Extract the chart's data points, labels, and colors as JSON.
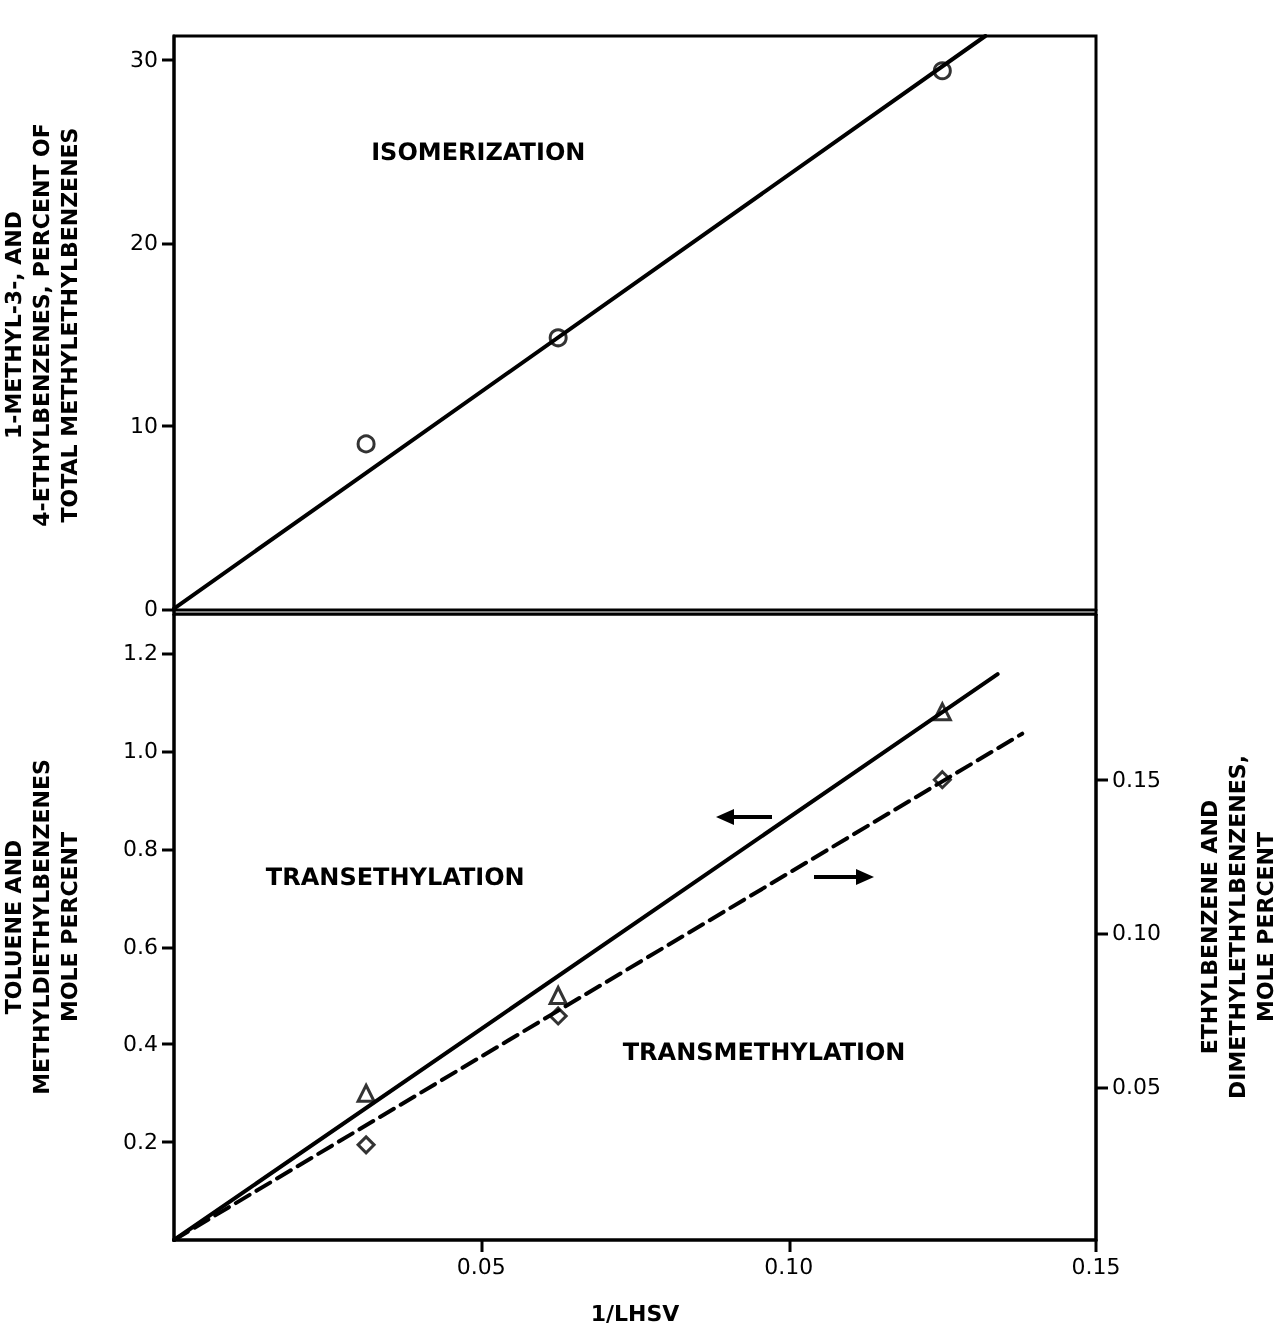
{
  "chart_data": [
    {
      "type": "scatter",
      "ylabel": "1-METHYL-3-, AND\n4-ETHYLBENZENES, PERCENT OF\nTOTAL METHYLETHYLBENZENES",
      "xlim": [
        0,
        0.15
      ],
      "ylim": [
        -0.3,
        31.3
      ],
      "yticks": [
        0,
        10,
        20,
        30
      ],
      "tick_labels": "y",
      "annotations": [
        "ISOMERIZATION"
      ],
      "series": [
        {
          "type": "scatter",
          "marker": "circle",
          "color": "#000000",
          "x": [
            0.03125,
            0.0625,
            0.125
          ],
          "values": [
            9.0,
            14.8,
            29.4
          ]
        },
        {
          "type": "line",
          "marker": "none",
          "line_style": "solid",
          "color": "#000000",
          "x": [
            0,
            0.132
          ],
          "values": [
            0,
            31.3
          ]
        }
      ]
    },
    {
      "type": "scatter",
      "xlabel": "1/LHSV",
      "ylabel": "TOLUENE AND\nMETHYLDIETHYLBENZENES\nMOLE PERCENT",
      "y2label": "ETHYLBENZENE AND\nDIMETHYLETHYLBENZENES,\nMOLE PERCENT",
      "xlim": [
        0,
        0.15
      ],
      "xticks": [
        0.05,
        {
          "value": 0.1,
          "label": "0.10"
        },
        0.15
      ],
      "ylim": [
        0,
        1.28
      ],
      "yticks": [
        0.2,
        0.4,
        0.6,
        0.8,
        {
          "value": 1,
          "label": "1.0"
        },
        1.2
      ],
      "y2lim": [
        0,
        0.204
      ],
      "y2ticks": [
        0.05,
        {
          "value": 0.1,
          "label": "0.10"
        },
        0.15
      ],
      "annotations": [
        "TRANSETHYLATION",
        "TRANSMETHYLATION"
      ],
      "series": [
        {
          "type": "scatter",
          "marker": "triangle",
          "color": "#000000",
          "x": [
            0.03125,
            0.0625,
            0.125
          ],
          "values": [
            0.3,
            0.5,
            1.08
          ]
        },
        {
          "type": "line",
          "marker": "none",
          "line_style": "solid",
          "color": "#000000",
          "x": [
            0,
            0.134
          ],
          "values": [
            0,
            1.157
          ]
        },
        {
          "type": "scatter",
          "marker": "diamond",
          "axis": "y2",
          "color": "#000000",
          "x": [
            0.03125,
            0.0625,
            0.125
          ],
          "values": [
            0.031,
            0.073,
            0.15
          ]
        },
        {
          "type": "line",
          "marker": "none",
          "line_style": "dashed",
          "axis": "y2",
          "color": "#000000",
          "x": [
            0,
            0.138
          ],
          "values": [
            0,
            0.165
          ]
        }
      ]
    }
  ]
}
